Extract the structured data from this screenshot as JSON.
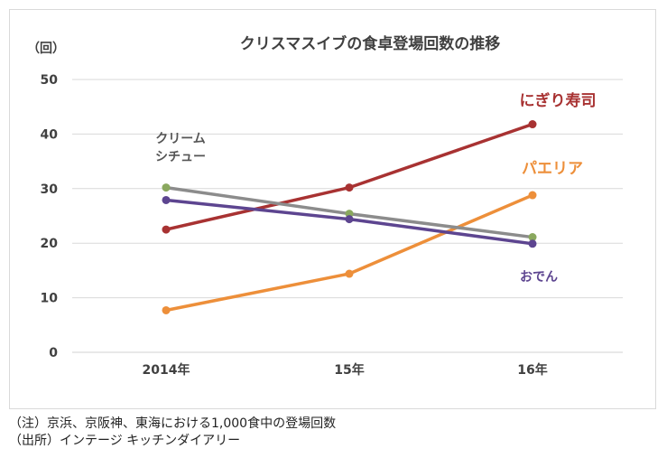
{
  "chart_data": {
    "type": "line",
    "title": "クリスマスイブの食卓登場回数の推移",
    "unit_label": "（回）",
    "categories": [
      "2014年",
      "15年",
      "16年"
    ],
    "ylim": [
      0,
      50
    ],
    "yticks": [
      0,
      10,
      20,
      30,
      40,
      50
    ],
    "grid": true,
    "legend": "inline labels next to lines",
    "series": [
      {
        "name": "にぎり寿司",
        "values": [
          22.5,
          30.2,
          41.8
        ],
        "color": "#a83232",
        "marker": "#a83232"
      },
      {
        "name": "パエリア",
        "values": [
          7.7,
          14.4,
          28.8
        ],
        "color": "#ed8f3a",
        "marker": "#ed8f3a"
      },
      {
        "name": "クリームシチュー",
        "label_lines": [
          "クリーム",
          "シチュー"
        ],
        "values": [
          30.2,
          25.4,
          21.1
        ],
        "color": "#8c8c8c",
        "marker": "#8aa85e"
      },
      {
        "name": "おでん",
        "values": [
          27.9,
          24.4,
          19.9
        ],
        "color": "#5d4590",
        "marker": "#5d4590"
      }
    ]
  },
  "footnotes": {
    "note": "（注）京浜、京阪神、東海における1,000食中の登場回数",
    "source": "（出所）インテージ キッチンダイアリー"
  }
}
